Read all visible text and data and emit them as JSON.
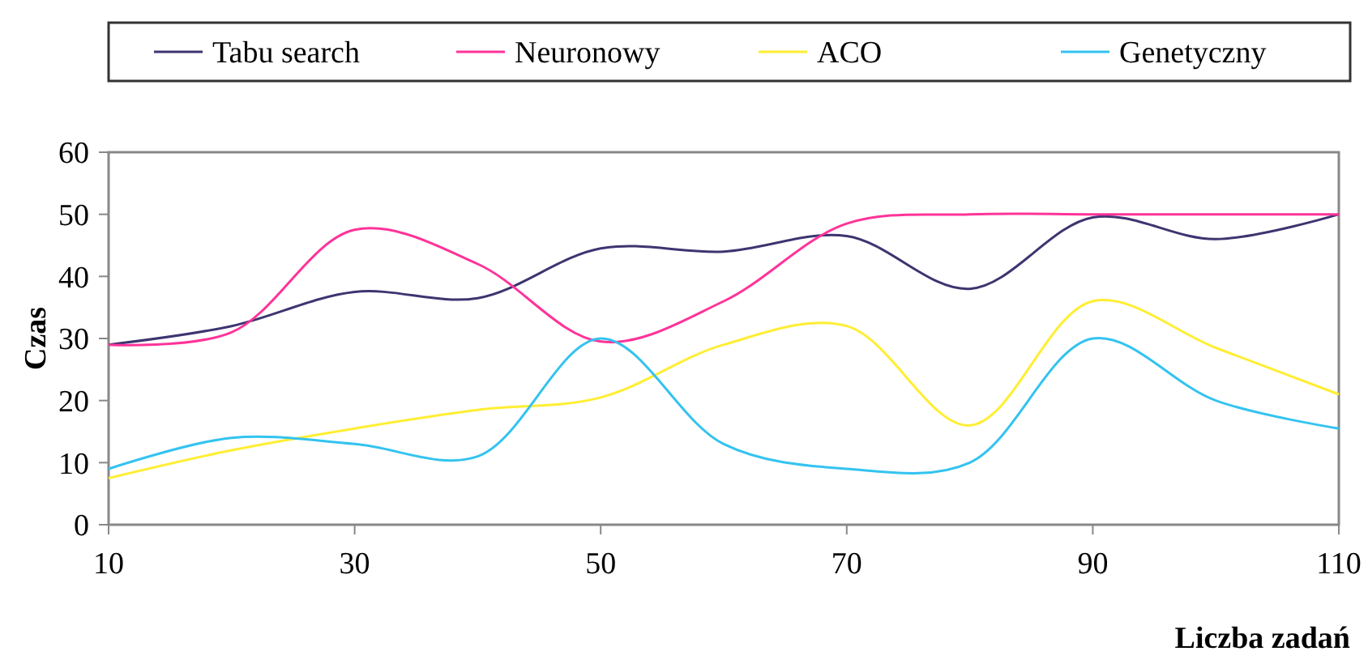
{
  "chart_data": {
    "type": "line",
    "xlabel": "Liczba zadań",
    "ylabel": "Czas",
    "x": [
      10,
      20,
      30,
      40,
      50,
      60,
      70,
      80,
      90,
      100,
      110
    ],
    "xlim": [
      10,
      110
    ],
    "xticks": [
      10,
      30,
      50,
      70,
      90,
      110
    ],
    "ylim": [
      0,
      60
    ],
    "yticks": [
      0,
      10,
      20,
      30,
      40,
      50,
      60
    ],
    "grid": false,
    "legend": "top",
    "marker": "none",
    "line_style": "solid",
    "series": [
      {
        "name": "Tabu search",
        "color": "#3d3570",
        "values": [
          29,
          32,
          37.5,
          36.5,
          44.5,
          44,
          46.5,
          38,
          49.5,
          46,
          50
        ]
      },
      {
        "name": "Neuronowy",
        "color": "#ff3399",
        "values": [
          29,
          31,
          47.5,
          42,
          29.5,
          36,
          48.5,
          50,
          50,
          50,
          50
        ]
      },
      {
        "name": "ACO",
        "color": "#ffee33",
        "values": [
          7.5,
          12,
          15.5,
          18.5,
          20.5,
          29,
          32,
          16,
          36,
          28.5,
          21
        ]
      },
      {
        "name": "Genetyczny",
        "color": "#33c3f0",
        "values": [
          9,
          14,
          13,
          11,
          30,
          13,
          9,
          10,
          30,
          20,
          15.5
        ]
      }
    ]
  }
}
